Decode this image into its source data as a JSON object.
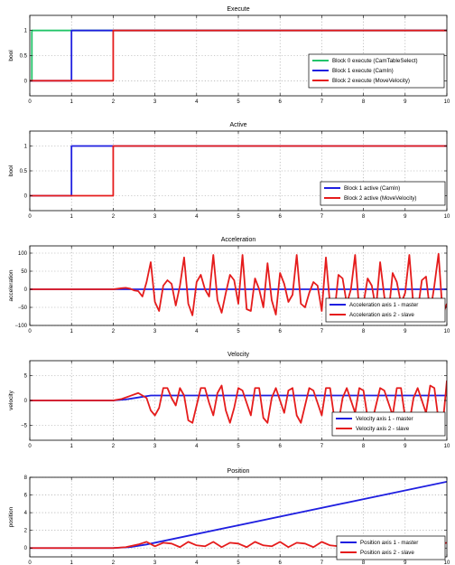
{
  "colors": {
    "green": "#22c469",
    "blue": "#1f1fe0",
    "red": "#e51c1c"
  },
  "chart_data": [
    {
      "type": "line",
      "title": "Execute",
      "ylabel": "bool",
      "xlim": [
        0,
        10
      ],
      "ylim": [
        -0.3,
        1.3
      ],
      "xticks": [
        0,
        1,
        2,
        3,
        4,
        5,
        6,
        7,
        8,
        9,
        10
      ],
      "yticks": [
        0,
        0.5,
        1
      ],
      "ytick_labels": [
        "0",
        "0.5",
        "1"
      ],
      "grid": true,
      "legend_position": "center-right",
      "series": [
        {
          "name": "Block 0 execute (CamTableSelect)",
          "color": "#22c469",
          "x": [
            0,
            0.05,
            0.05,
            10
          ],
          "y": [
            0,
            0,
            1,
            1
          ]
        },
        {
          "name": "Block 1 execute (CamIn)",
          "color": "#1f1fe0",
          "x": [
            0,
            1,
            1,
            10
          ],
          "y": [
            0,
            0,
            1,
            1
          ]
        },
        {
          "name": "Block 2 execute (MoveVelocity)",
          "color": "#e51c1c",
          "x": [
            0,
            2,
            2,
            10
          ],
          "y": [
            0,
            0,
            1,
            1
          ]
        }
      ]
    },
    {
      "type": "line",
      "title": "Active",
      "ylabel": "bool",
      "xlim": [
        0,
        10
      ],
      "ylim": [
        -0.3,
        1.3
      ],
      "xticks": [
        0,
        1,
        2,
        3,
        4,
        5,
        6,
        7,
        8,
        9,
        10
      ],
      "yticks": [
        0,
        0.5,
        1
      ],
      "ytick_labels": [
        "0",
        "0.5",
        "1"
      ],
      "grid": true,
      "legend_position": "bottom-right",
      "series": [
        {
          "name": "Block 1 active (CamIn)",
          "color": "#1f1fe0",
          "x": [
            0,
            1,
            1,
            10
          ],
          "y": [
            0,
            0,
            1,
            1
          ]
        },
        {
          "name": "Block 2 active (MoveVelocity)",
          "color": "#e51c1c",
          "x": [
            0,
            2,
            2,
            10
          ],
          "y": [
            0,
            0,
            1,
            1
          ]
        }
      ]
    },
    {
      "type": "line",
      "title": "Acceleration",
      "ylabel": "acceleration",
      "xlim": [
        0,
        10
      ],
      "ylim": [
        -100,
        120
      ],
      "xticks": [
        0,
        1,
        2,
        3,
        4,
        5,
        6,
        7,
        8,
        9,
        10
      ],
      "yticks": [
        -100,
        -50,
        0,
        50,
        100
      ],
      "ytick_labels": [
        "−100",
        "−50",
        "0",
        "50",
        "100"
      ],
      "grid": true,
      "legend_position": "bottom-right",
      "series": [
        {
          "name": "Acceleration axis 1 - master",
          "color": "#1f1fe0",
          "x": [
            0,
            10
          ],
          "y": [
            0,
            0
          ]
        },
        {
          "name": "Acceleration axis 2 - slave",
          "color": "#e51c1c",
          "x": [
            0,
            2.0,
            2.2,
            2.3,
            2.4,
            2.5,
            2.6,
            2.7,
            2.8,
            2.9,
            3.0,
            3.1,
            3.2,
            3.3,
            3.4,
            3.5,
            3.6,
            3.7,
            3.8,
            3.9,
            4.0,
            4.1,
            4.2,
            4.3,
            4.4,
            4.5,
            4.6,
            4.7,
            4.8,
            4.9,
            5.0,
            5.1,
            5.2,
            5.3,
            5.4,
            5.5,
            5.6,
            5.7,
            5.8,
            5.9,
            6.0,
            6.1,
            6.2,
            6.3,
            6.4,
            6.5,
            6.6,
            6.7,
            6.8,
            6.9,
            7.0,
            7.1,
            7.2,
            7.3,
            7.4,
            7.5,
            7.6,
            7.7,
            7.8,
            7.9,
            8.0,
            8.1,
            8.2,
            8.3,
            8.4,
            8.5,
            8.6,
            8.7,
            8.8,
            8.9,
            9.0,
            9.1,
            9.2,
            9.3,
            9.4,
            9.5,
            9.6,
            9.7,
            9.8,
            9.9,
            10.0
          ],
          "y": [
            0,
            0,
            3,
            4,
            2,
            -3,
            -5,
            -20,
            20,
            75,
            -35,
            -60,
            10,
            25,
            15,
            -45,
            10,
            88,
            -40,
            -72,
            20,
            40,
            0,
            -20,
            95,
            -30,
            -65,
            -10,
            40,
            25,
            -40,
            95,
            -55,
            -60,
            30,
            0,
            -50,
            72,
            -30,
            -70,
            45,
            15,
            -35,
            -15,
            95,
            -40,
            -50,
            -10,
            20,
            10,
            -60,
            88,
            -45,
            -70,
            40,
            30,
            -40,
            0,
            95,
            -60,
            -40,
            30,
            10,
            -55,
            75,
            -20,
            -70,
            45,
            20,
            -40,
            -10,
            95,
            -50,
            -60,
            25,
            35,
            -65,
            10,
            98,
            -70,
            -40
          ]
        }
      ]
    },
    {
      "type": "line",
      "title": "Velocity",
      "ylabel": "velocity",
      "xlim": [
        0,
        10
      ],
      "ylim": [
        -8,
        8
      ],
      "xticks": [
        0,
        1,
        2,
        3,
        4,
        5,
        6,
        7,
        8,
        9,
        10
      ],
      "yticks": [
        -5,
        0,
        5
      ],
      "ytick_labels": [
        "−5",
        "0",
        "5"
      ],
      "grid": true,
      "legend_position": "bottom-right",
      "series": [
        {
          "name": "Velocity axis 1 - master",
          "color": "#1f1fe0",
          "x": [
            0,
            2.0,
            2.3,
            2.6,
            2.9,
            3.2,
            10
          ],
          "y": [
            0,
            0,
            0.2,
            0.6,
            1.0,
            1.0,
            1.0
          ]
        },
        {
          "name": "Velocity axis 2 - slave",
          "color": "#e51c1c",
          "x": [
            0,
            2.0,
            2.2,
            2.4,
            2.6,
            2.8,
            2.9,
            3.0,
            3.1,
            3.2,
            3.3,
            3.4,
            3.5,
            3.6,
            3.7,
            3.8,
            3.9,
            4.0,
            4.1,
            4.2,
            4.3,
            4.4,
            4.5,
            4.6,
            4.7,
            4.8,
            4.9,
            5.0,
            5.1,
            5.2,
            5.3,
            5.4,
            5.5,
            5.6,
            5.7,
            5.8,
            5.9,
            6.0,
            6.1,
            6.2,
            6.3,
            6.4,
            6.5,
            6.6,
            6.7,
            6.8,
            6.9,
            7.0,
            7.1,
            7.2,
            7.3,
            7.4,
            7.5,
            7.6,
            7.7,
            7.8,
            7.9,
            8.0,
            8.1,
            8.2,
            8.3,
            8.4,
            8.5,
            8.6,
            8.7,
            8.8,
            8.9,
            9.0,
            9.1,
            9.2,
            9.3,
            9.4,
            9.5,
            9.6,
            9.7,
            9.8,
            9.9,
            10.0
          ],
          "y": [
            0,
            0,
            0.3,
            0.9,
            1.5,
            0.5,
            -2.0,
            -3.0,
            -1.5,
            2.5,
            2.5,
            0.5,
            -1.0,
            2.5,
            1.0,
            -4.0,
            -4.5,
            -1.0,
            2.5,
            2.5,
            -0.5,
            -3.0,
            1.5,
            3.0,
            -2.0,
            -4.5,
            -1.5,
            2.5,
            2.0,
            -0.5,
            -3.0,
            2.5,
            2.5,
            -3.5,
            -4.5,
            0.5,
            2.5,
            0.0,
            -2.5,
            2.0,
            2.5,
            -3.0,
            -4.5,
            -1.0,
            2.5,
            2.0,
            -0.5,
            -3.0,
            2.5,
            2.5,
            -3.5,
            -4.5,
            0.5,
            2.5,
            0.0,
            -2.5,
            2.5,
            2.0,
            -3.5,
            -4.5,
            -1.0,
            2.5,
            2.0,
            -0.5,
            -3.0,
            2.5,
            2.5,
            -3.5,
            -4.5,
            0.5,
            2.5,
            0.0,
            -2.5,
            3.0,
            2.5,
            -4.0,
            -5.0,
            4.0
          ]
        }
      ]
    },
    {
      "type": "line",
      "title": "Position",
      "ylabel": "position",
      "xlim": [
        0,
        10
      ],
      "ylim": [
        -1,
        8
      ],
      "xticks": [
        0,
        1,
        2,
        3,
        4,
        5,
        6,
        7,
        8,
        9,
        10
      ],
      "yticks": [
        0,
        2,
        4,
        6,
        8
      ],
      "ytick_labels": [
        "0",
        "2",
        "4",
        "6",
        "8"
      ],
      "grid": true,
      "legend_position": "center-right",
      "series": [
        {
          "name": "Position axis 1 - master",
          "color": "#1f1fe0",
          "x": [
            0,
            2.0,
            2.4,
            2.8,
            10
          ],
          "y": [
            0,
            0,
            0.1,
            0.4,
            7.5
          ]
        },
        {
          "name": "Position axis 2 - slave",
          "color": "#e51c1c",
          "x": [
            0,
            2.0,
            2.3,
            2.6,
            2.8,
            3.0,
            3.2,
            3.4,
            3.6,
            3.8,
            4.0,
            4.2,
            4.4,
            4.6,
            4.8,
            5.0,
            5.2,
            5.4,
            5.6,
            5.8,
            6.0,
            6.2,
            6.4,
            6.6,
            6.8,
            7.0,
            7.2,
            7.4,
            7.6,
            7.8,
            8.0,
            8.2,
            8.4,
            8.6,
            8.8,
            9.0,
            9.2,
            9.4,
            9.6,
            9.8,
            10.0
          ],
          "y": [
            0,
            0,
            0.1,
            0.4,
            0.7,
            0.2,
            0.6,
            0.5,
            0.1,
            0.7,
            0.3,
            0.2,
            0.7,
            0.1,
            0.6,
            0.5,
            0.1,
            0.7,
            0.3,
            0.2,
            0.7,
            0.1,
            0.6,
            0.5,
            0.1,
            0.7,
            0.3,
            0.2,
            0.7,
            0.1,
            0.6,
            0.5,
            0.1,
            0.7,
            0.3,
            0.2,
            0.7,
            0.1,
            0.6,
            0.4,
            0.6
          ]
        }
      ]
    }
  ]
}
